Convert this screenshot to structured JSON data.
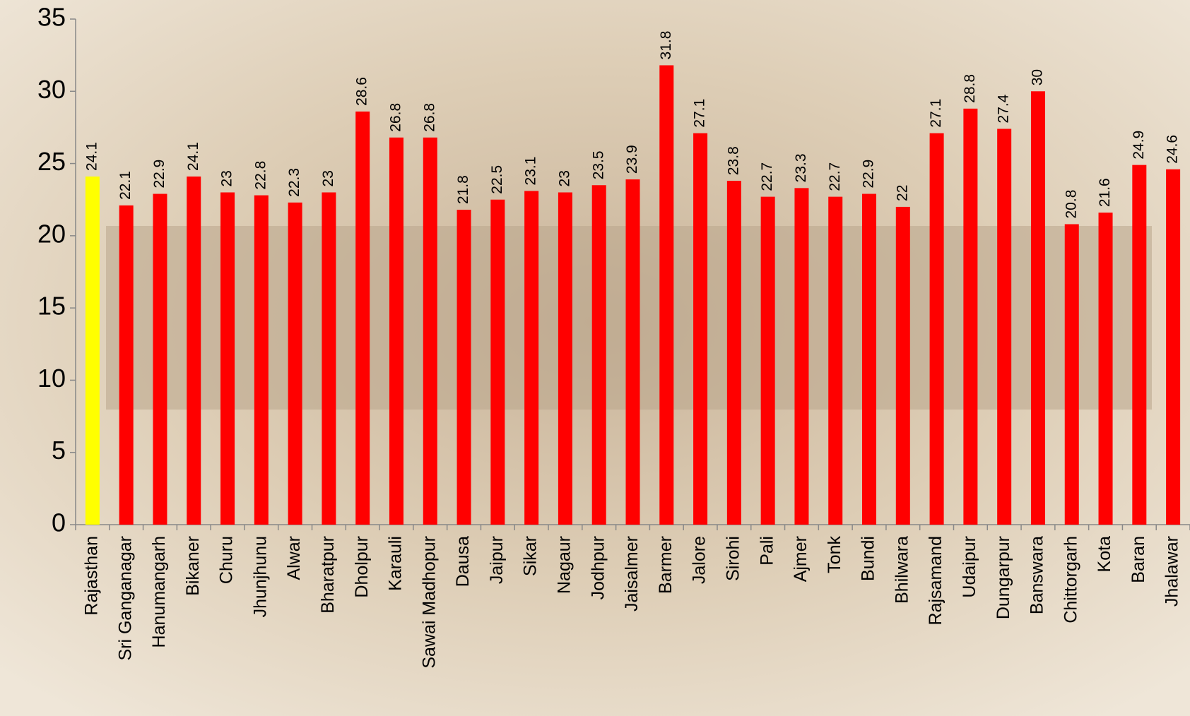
{
  "chart_data": {
    "type": "bar",
    "categories": [
      "Rajasthan",
      "Sri Ganganagar",
      "Hanumangarh",
      "Bikaner",
      "Churu",
      "Jhunjhunu",
      "Alwar",
      "Bharatpur",
      "Dholpur",
      "Karauli",
      "Sawai Madhopur",
      "Dausa",
      "Jaipur",
      "Sikar",
      "Nagaur",
      "Jodhpur",
      "Jaisalmer",
      "Barmer",
      "Jalore",
      "Sirohi",
      "Pali",
      "Ajmer",
      "Tonk",
      "Bundi",
      "Bhilwara",
      "Rajsamand",
      "Udaipur",
      "Dungarpur",
      "Banswara",
      "Chittorgarh",
      "Kota",
      "Baran",
      "Jhalawar"
    ],
    "values": [
      24.1,
      22.1,
      22.9,
      24.1,
      23,
      22.8,
      22.3,
      23,
      28.6,
      26.8,
      26.8,
      21.8,
      22.5,
      23.1,
      23,
      23.5,
      23.9,
      31.8,
      27.1,
      23.8,
      22.7,
      23.3,
      22.7,
      22.9,
      22,
      27.1,
      28.8,
      27.4,
      30,
      20.8,
      21.6,
      24.9,
      24.6
    ],
    "colors": [
      "#ffff00",
      "#ff0000",
      "#ff0000",
      "#ff0000",
      "#ff0000",
      "#ff0000",
      "#ff0000",
      "#ff0000",
      "#ff0000",
      "#ff0000",
      "#ff0000",
      "#ff0000",
      "#ff0000",
      "#ff0000",
      "#ff0000",
      "#ff0000",
      "#ff0000",
      "#ff0000",
      "#ff0000",
      "#ff0000",
      "#ff0000",
      "#ff0000",
      "#ff0000",
      "#ff0000",
      "#ff0000",
      "#ff0000",
      "#ff0000",
      "#ff0000",
      "#ff0000",
      "#ff0000",
      "#ff0000",
      "#ff0000",
      "#ff0000"
    ],
    "ylim": [
      0,
      35
    ],
    "yticks": [
      0,
      5,
      10,
      15,
      20,
      25,
      30,
      35
    ],
    "grid": false
  }
}
